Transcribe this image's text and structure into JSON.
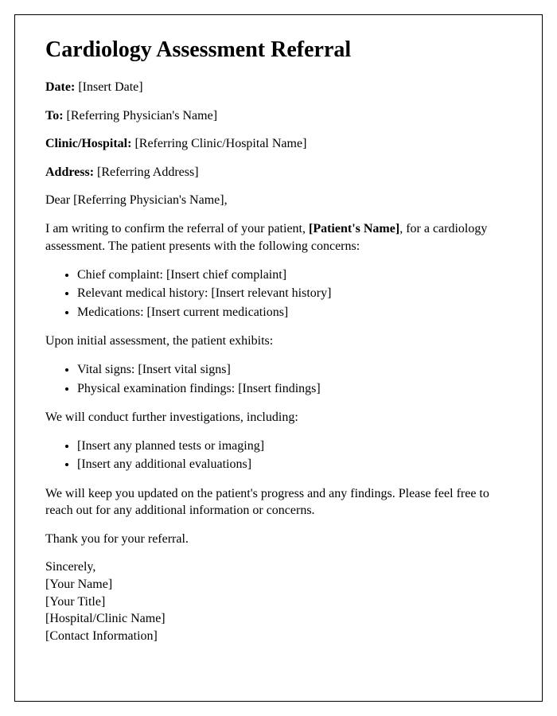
{
  "title": "Cardiology Assessment Referral",
  "fields": {
    "date": {
      "label": "Date:",
      "value": "[Insert Date]"
    },
    "to": {
      "label": "To:",
      "value": "[Referring Physician's Name]"
    },
    "clinic": {
      "label": "Clinic/Hospital:",
      "value": "[Referring Clinic/Hospital Name]"
    },
    "address": {
      "label": "Address:",
      "value": "[Referring Address]"
    }
  },
  "salutation": {
    "prefix": "Dear ",
    "name": "[Referring Physician's Name]",
    "suffix": ","
  },
  "intro": {
    "part1": "I am writing to confirm the referral of your patient, ",
    "patient": "[Patient's Name]",
    "part2": ", for a cardiology assessment. The patient presents with the following concerns:"
  },
  "concerns": [
    "Chief complaint: [Insert chief complaint]",
    "Relevant medical history: [Insert relevant history]",
    "Medications: [Insert current medications]"
  ],
  "assessment_intro": "Upon initial assessment, the patient exhibits:",
  "assessment": [
    "Vital signs: [Insert vital signs]",
    "Physical examination findings: [Insert findings]"
  ],
  "investigations_intro": "We will conduct further investigations, including:",
  "investigations": [
    "[Insert any planned tests or imaging]",
    "[Insert any additional evaluations]"
  ],
  "closing1": "We will keep you updated on the patient's progress and any findings. Please feel free to reach out for any additional information or concerns.",
  "closing2": "Thank you for your referral.",
  "signature": {
    "valediction": "Sincerely,",
    "name": "[Your Name]",
    "title": "[Your Title]",
    "hospital": "[Hospital/Clinic Name]",
    "contact": "[Contact Information]"
  }
}
